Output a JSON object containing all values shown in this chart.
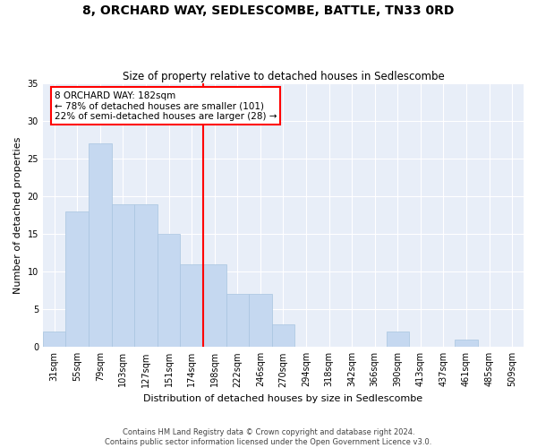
{
  "title": "8, ORCHARD WAY, SEDLESCOMBE, BATTLE, TN33 0RD",
  "subtitle": "Size of property relative to detached houses in Sedlescombe",
  "xlabel": "Distribution of detached houses by size in Sedlescombe",
  "ylabel": "Number of detached properties",
  "footer": "Contains HM Land Registry data © Crown copyright and database right 2024.\nContains public sector information licensed under the Open Government Licence v3.0.",
  "bin_labels": [
    "31sqm",
    "55sqm",
    "79sqm",
    "103sqm",
    "127sqm",
    "151sqm",
    "174sqm",
    "198sqm",
    "222sqm",
    "246sqm",
    "270sqm",
    "294sqm",
    "318sqm",
    "342sqm",
    "366sqm",
    "390sqm",
    "413sqm",
    "437sqm",
    "461sqm",
    "485sqm",
    "509sqm"
  ],
  "bar_values": [
    2,
    18,
    27,
    19,
    19,
    15,
    11,
    11,
    7,
    7,
    3,
    0,
    0,
    0,
    0,
    2,
    0,
    0,
    1,
    0,
    0
  ],
  "bar_color": "#c5d8f0",
  "bar_edge_color": "#a8c4e0",
  "annotation_text": "8 ORCHARD WAY: 182sqm\n← 78% of detached houses are smaller (101)\n22% of semi-detached houses are larger (28) →",
  "annotation_box_color": "white",
  "annotation_box_edge": "red",
  "ylim": [
    0,
    35
  ],
  "yticks": [
    0,
    5,
    10,
    15,
    20,
    25,
    30,
    35
  ],
  "bg_color": "#e8eef8",
  "grid_color": "white",
  "title_fontsize": 10,
  "subtitle_fontsize": 8.5,
  "xlabel_fontsize": 8,
  "ylabel_fontsize": 8,
  "tick_fontsize": 7,
  "annotation_fontsize": 7.5
}
